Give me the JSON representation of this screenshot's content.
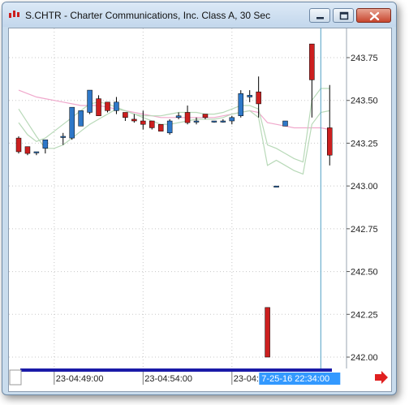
{
  "window": {
    "title": "S.CHTR - Charter Communications, Inc. Class A, 30 Sec"
  },
  "colors": {
    "up_candle": "#2e78c8",
    "down_candle": "#cc1f1f",
    "ma_fast": "#b8d9b8",
    "ma_slow": "#f0a8cc",
    "cursor_line": "#4f9fc4",
    "time_highlight_bg": "#3399ff",
    "scrollbar": "#1a1aa8",
    "nav_arrow": "#e02020"
  },
  "icons": [
    "app-logo-icon",
    "minimize-icon",
    "maximize-icon",
    "close-icon",
    "scroll-right-arrow-icon"
  ],
  "chart_data": {
    "type": "candlestick",
    "y_ticks": [
      "243.75",
      "243.50",
      "243.25",
      "243.00",
      "242.75",
      "242.50",
      "242.25",
      "242.00"
    ],
    "y_tick_values": [
      243.75,
      243.5,
      243.25,
      243.0,
      242.75,
      242.5,
      242.25,
      242.0
    ],
    "ylim": [
      241.98,
      244.02
    ],
    "x_ticks": [
      "23-04:49:00",
      "23-04:54:00",
      "23-04:59:00"
    ],
    "x_tick_index": [
      4,
      14,
      24
    ],
    "cursor_label": "7-25-16 22:34:00",
    "cursor_index": 34,
    "n_slots": 36,
    "grid": true,
    "candles": [
      {
        "i": 0,
        "o": 243.28,
        "h": 243.29,
        "l": 243.19,
        "c": 243.2
      },
      {
        "i": 1,
        "o": 243.23,
        "h": 243.23,
        "l": 243.18,
        "c": 243.19
      },
      {
        "i": 2,
        "o": 243.2,
        "h": 243.2,
        "l": 243.18,
        "c": 243.2
      },
      {
        "i": 3,
        "o": 243.22,
        "h": 243.27,
        "l": 243.19,
        "c": 243.27
      },
      {
        "i": 5,
        "o": 243.29,
        "h": 243.31,
        "l": 243.24,
        "c": 243.29
      },
      {
        "i": 6,
        "o": 243.28,
        "h": 243.46,
        "l": 243.27,
        "c": 243.46
      },
      {
        "i": 7,
        "o": 243.35,
        "h": 243.44,
        "l": 243.35,
        "c": 243.44
      },
      {
        "i": 8,
        "o": 243.43,
        "h": 243.56,
        "l": 243.42,
        "c": 243.56
      },
      {
        "i": 9,
        "o": 243.51,
        "h": 243.53,
        "l": 243.41,
        "c": 243.41
      },
      {
        "i": 10,
        "o": 243.49,
        "h": 243.49,
        "l": 243.43,
        "c": 243.44
      },
      {
        "i": 11,
        "o": 243.44,
        "h": 243.52,
        "l": 243.42,
        "c": 243.49
      },
      {
        "i": 12,
        "o": 243.43,
        "h": 243.43,
        "l": 243.38,
        "c": 243.4
      },
      {
        "i": 13,
        "o": 243.39,
        "h": 243.42,
        "l": 243.37,
        "c": 243.38
      },
      {
        "i": 14,
        "o": 243.38,
        "h": 243.44,
        "l": 243.33,
        "c": 243.36
      },
      {
        "i": 15,
        "o": 243.38,
        "h": 243.38,
        "l": 243.33,
        "c": 243.34
      },
      {
        "i": 16,
        "o": 243.36,
        "h": 243.36,
        "l": 243.32,
        "c": 243.32
      },
      {
        "i": 17,
        "o": 243.31,
        "h": 243.39,
        "l": 243.3,
        "c": 243.38
      },
      {
        "i": 18,
        "o": 243.4,
        "h": 243.43,
        "l": 243.39,
        "c": 243.41
      },
      {
        "i": 19,
        "o": 243.43,
        "h": 243.47,
        "l": 243.36,
        "c": 243.37
      },
      {
        "i": 20,
        "o": 243.38,
        "h": 243.4,
        "l": 243.36,
        "c": 243.38
      },
      {
        "i": 21,
        "o": 243.42,
        "h": 243.42,
        "l": 243.39,
        "c": 243.4
      },
      {
        "i": 22,
        "o": 243.38,
        "h": 243.38,
        "l": 243.37,
        "c": 243.38
      },
      {
        "i": 23,
        "o": 243.38,
        "h": 243.39,
        "l": 243.37,
        "c": 243.38
      },
      {
        "i": 24,
        "o": 243.38,
        "h": 243.41,
        "l": 243.36,
        "c": 243.4
      },
      {
        "i": 25,
        "o": 243.41,
        "h": 243.56,
        "l": 243.4,
        "c": 243.54
      },
      {
        "i": 26,
        "o": 243.52,
        "h": 243.56,
        "l": 243.49,
        "c": 243.53
      },
      {
        "i": 27,
        "o": 243.55,
        "h": 243.64,
        "l": 243.4,
        "c": 243.48
      },
      {
        "i": 28,
        "o": 242.29,
        "h": 242.29,
        "l": 242.0,
        "c": 242.0
      },
      {
        "i": 29,
        "o": 243.0,
        "h": 243.0,
        "l": 243.0,
        "c": 243.0
      },
      {
        "i": 30,
        "o": 243.35,
        "h": 243.38,
        "l": 243.35,
        "c": 243.38
      },
      {
        "i": 33,
        "o": 243.83,
        "h": 243.83,
        "l": 243.4,
        "c": 243.62
      },
      {
        "i": 35,
        "o": 243.34,
        "h": 243.59,
        "l": 243.12,
        "c": 243.18
      }
    ],
    "ma_fast": [
      [
        0,
        243.45
      ],
      [
        1,
        243.37
      ],
      [
        2,
        243.29
      ],
      [
        3,
        243.22
      ],
      [
        4,
        243.22
      ],
      [
        5,
        243.24
      ],
      [
        6,
        243.28
      ],
      [
        7,
        243.32
      ],
      [
        8,
        243.36
      ],
      [
        9,
        243.39
      ],
      [
        10,
        243.42
      ],
      [
        11,
        243.45
      ],
      [
        12,
        243.44
      ],
      [
        13,
        243.42
      ],
      [
        14,
        243.4
      ],
      [
        15,
        243.38
      ],
      [
        16,
        243.36
      ],
      [
        17,
        243.36
      ],
      [
        18,
        243.37
      ],
      [
        19,
        243.38
      ],
      [
        20,
        243.39
      ],
      [
        21,
        243.39
      ],
      [
        22,
        243.39
      ],
      [
        23,
        243.4
      ],
      [
        24,
        243.42
      ],
      [
        25,
        243.43
      ],
      [
        26,
        243.44
      ],
      [
        27,
        243.4
      ],
      [
        28,
        243.12
      ],
      [
        29,
        243.15
      ],
      [
        30,
        243.12
      ],
      [
        31,
        243.09
      ],
      [
        32,
        243.07
      ],
      [
        33,
        243.36
      ],
      [
        34,
        243.43
      ],
      [
        35,
        243.44
      ]
    ],
    "ma_fast_upper": [
      [
        0,
        243.37
      ],
      [
        1,
        243.3
      ],
      [
        2,
        243.26
      ],
      [
        3,
        243.28
      ],
      [
        4,
        243.32
      ],
      [
        5,
        243.36
      ],
      [
        6,
        243.4
      ],
      [
        7,
        243.44
      ],
      [
        8,
        243.48
      ],
      [
        9,
        243.49
      ],
      [
        10,
        243.48
      ],
      [
        11,
        243.46
      ],
      [
        12,
        243.44
      ],
      [
        13,
        243.42
      ],
      [
        14,
        243.41
      ],
      [
        15,
        243.41
      ],
      [
        16,
        243.41
      ],
      [
        17,
        243.42
      ],
      [
        18,
        243.43
      ],
      [
        19,
        243.43
      ],
      [
        20,
        243.43
      ],
      [
        21,
        243.42
      ],
      [
        22,
        243.42
      ],
      [
        23,
        243.43
      ],
      [
        24,
        243.45
      ],
      [
        25,
        243.47
      ],
      [
        26,
        243.47
      ],
      [
        27,
        243.45
      ],
      [
        28,
        243.24
      ],
      [
        29,
        243.22
      ],
      [
        30,
        243.19
      ],
      [
        31,
        243.16
      ],
      [
        32,
        243.14
      ],
      [
        33,
        243.5
      ],
      [
        34,
        243.57
      ],
      [
        35,
        243.57
      ]
    ],
    "ma_slow": [
      [
        0,
        243.56
      ],
      [
        1,
        243.54
      ],
      [
        2,
        243.52
      ],
      [
        3,
        243.51
      ],
      [
        4,
        243.5
      ],
      [
        5,
        243.49
      ],
      [
        6,
        243.48
      ],
      [
        7,
        243.47
      ],
      [
        8,
        243.47
      ],
      [
        9,
        243.47
      ],
      [
        10,
        243.46
      ],
      [
        11,
        243.45
      ],
      [
        12,
        243.44
      ],
      [
        13,
        243.43
      ],
      [
        14,
        243.42
      ],
      [
        15,
        243.41
      ],
      [
        16,
        243.4
      ],
      [
        17,
        243.4
      ],
      [
        18,
        243.4
      ],
      [
        19,
        243.4
      ],
      [
        20,
        243.4
      ],
      [
        21,
        243.4
      ],
      [
        22,
        243.4
      ],
      [
        23,
        243.41
      ],
      [
        24,
        243.42
      ],
      [
        25,
        243.43
      ],
      [
        26,
        243.44
      ],
      [
        27,
        243.43
      ],
      [
        28,
        243.37
      ],
      [
        29,
        243.36
      ],
      [
        30,
        243.35
      ],
      [
        31,
        243.34
      ],
      [
        32,
        243.34
      ],
      [
        33,
        243.34
      ],
      [
        34,
        243.34
      ],
      [
        35,
        243.33
      ]
    ]
  }
}
